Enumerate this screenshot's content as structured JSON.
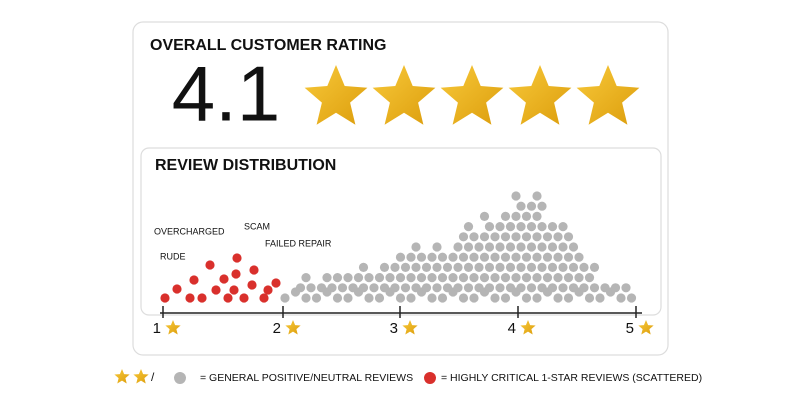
{
  "header": {
    "title": "OVERALL CUSTOMER RATING"
  },
  "rating": {
    "value": 4.1
  },
  "distribution": {
    "title": "REVIEW DISTRIBUTION",
    "axis_labels": [
      "1",
      "2",
      "3",
      "4",
      "5"
    ],
    "annotations": [
      "OVERCHARGED",
      "RUDE",
      "SCAM",
      "FAILED REPAIR"
    ]
  },
  "legend": {
    "general": "= GENERAL POSITIVE/NEUTRAL REVIEWS",
    "critical": "= HIGHLY CRITICAL 1-STAR REVIEWS (SCATTERED)"
  }
}
